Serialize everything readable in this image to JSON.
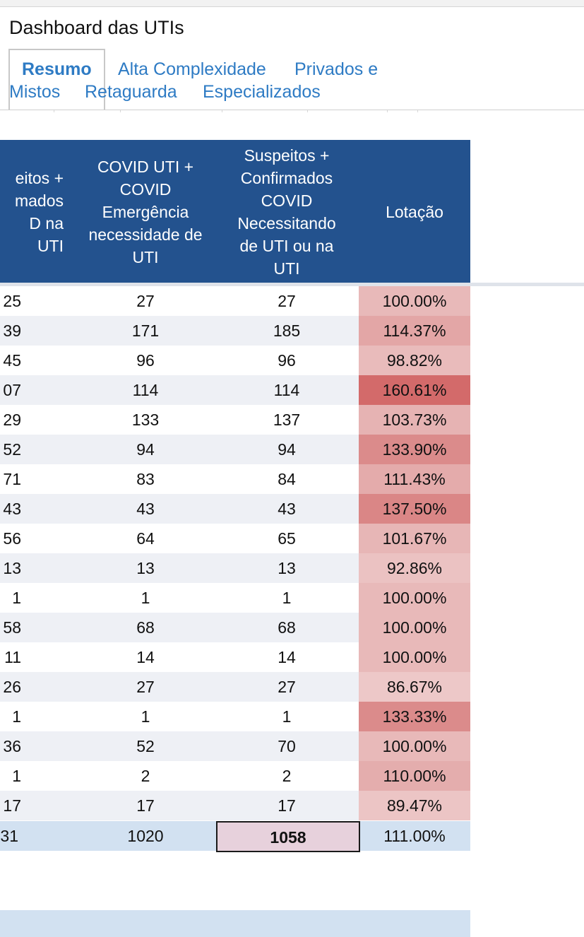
{
  "dashboard": {
    "title": "Dashboard das UTIs"
  },
  "tabs": [
    {
      "label": "Resumo",
      "active": true
    },
    {
      "label": "Alta Complexidade",
      "active": false
    },
    {
      "label": "Privados e",
      "active": false
    },
    {
      "label": "Mistos",
      "active": false
    },
    {
      "label": "Retaguarda",
      "active": false
    },
    {
      "label": "Especializados",
      "active": false
    }
  ],
  "table": {
    "headers": [
      "eitos +\nmados\nD na UTI",
      "COVID UTI +\nCOVID\nEmergência\nnecessidade de\nUTI",
      "Suspeitos +\nConfirmados\nCOVID\nNecessitando\nde UTI ou na\nUTI",
      "Lotação"
    ],
    "rows": [
      {
        "c1": "25",
        "c2": "27",
        "c3": "27",
        "lotacao": "100.00%",
        "fill": "#e8b9b9"
      },
      {
        "c1": "39",
        "c2": "171",
        "c3": "185",
        "lotacao": "114.37%",
        "fill": "#e3a6a6"
      },
      {
        "c1": "45",
        "c2": "96",
        "c3": "96",
        "lotacao": "98.82%",
        "fill": "#e9bbbb"
      },
      {
        "c1": "07",
        "c2": "114",
        "c3": "114",
        "lotacao": "160.61%",
        "fill": "#d36a6a"
      },
      {
        "c1": "29",
        "c2": "133",
        "c3": "137",
        "lotacao": "103.73%",
        "fill": "#e6b3b3"
      },
      {
        "c1": "52",
        "c2": "94",
        "c3": "94",
        "lotacao": "133.90%",
        "fill": "#db8b8b"
      },
      {
        "c1": "71",
        "c2": "83",
        "c3": "84",
        "lotacao": "111.43%",
        "fill": "#e4abab"
      },
      {
        "c1": "43",
        "c2": "43",
        "c3": "43",
        "lotacao": "137.50%",
        "fill": "#da8686"
      },
      {
        "c1": "56",
        "c2": "64",
        "c3": "65",
        "lotacao": "101.67%",
        "fill": "#e7b6b6"
      },
      {
        "c1": "13",
        "c2": "13",
        "c3": "13",
        "lotacao": "92.86%",
        "fill": "#ebc2c2"
      },
      {
        "c1": "1",
        "c2": "1",
        "c3": "1",
        "lotacao": "100.00%",
        "fill": "#e8b9b9"
      },
      {
        "c1": "58",
        "c2": "68",
        "c3": "68",
        "lotacao": "100.00%",
        "fill": "#e8b9b9"
      },
      {
        "c1": "11",
        "c2": "14",
        "c3": "14",
        "lotacao": "100.00%",
        "fill": "#e8b9b9"
      },
      {
        "c1": "26",
        "c2": "27",
        "c3": "27",
        "lotacao": "86.67%",
        "fill": "#edc8c8"
      },
      {
        "c1": "1",
        "c2": "1",
        "c3": "1",
        "lotacao": "133.33%",
        "fill": "#db8b8b"
      },
      {
        "c1": "36",
        "c2": "52",
        "c3": "70",
        "lotacao": "100.00%",
        "fill": "#e8b9b9"
      },
      {
        "c1": "1",
        "c2": "2",
        "c3": "2",
        "lotacao": "110.00%",
        "fill": "#e4adad"
      },
      {
        "c1": "17",
        "c2": "17",
        "c3": "17",
        "lotacao": "89.47%",
        "fill": "#ecc5c5"
      }
    ],
    "total": {
      "c1": "31",
      "c2": "1020",
      "c3": "1058",
      "lotacao": "111.00%"
    }
  },
  "colors": {
    "header_bg": "#23528e",
    "tab_link": "#2e7bc4",
    "row_alt": "#eef0f5",
    "total_bg": "#d2e1f1",
    "selected_cell_bg": "#e7d1dc"
  }
}
